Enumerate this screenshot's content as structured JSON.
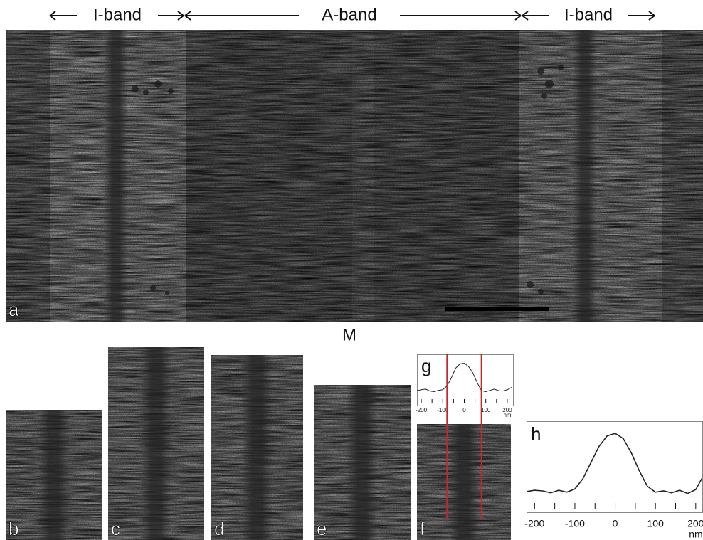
{
  "band_labels": [
    "I-band",
    "A-band",
    "I-band"
  ],
  "micrograph_label": "a",
  "m_line_label": "M",
  "strip_labels": [
    "b",
    "c",
    "d",
    "e",
    "f"
  ],
  "plots": [
    {
      "label": "g",
      "unit": "nm",
      "xlim": [
        -220,
        230
      ],
      "ylim": [
        0,
        110
      ],
      "xticks": [
        -200,
        -100,
        0,
        100,
        200
      ],
      "xminor": [
        -150,
        -50,
        50,
        150
      ],
      "x": [
        -220,
        -200,
        -180,
        -160,
        -140,
        -120,
        -100,
        -80,
        -60,
        -40,
        -20,
        0,
        20,
        40,
        60,
        80,
        100,
        120,
        140,
        160,
        180,
        200,
        220
      ],
      "values": [
        15,
        18,
        20,
        14,
        12,
        16,
        18,
        30,
        55,
        85,
        98,
        100,
        90,
        70,
        40,
        15,
        12,
        16,
        20,
        15,
        14,
        18,
        25
      ],
      "markers": [
        -80,
        80
      ],
      "color": "#222222",
      "marker_color": "#c0282d"
    },
    {
      "label": "h",
      "unit": "nm",
      "xlim": [
        -220,
        218
      ],
      "ylim": [
        0,
        110
      ],
      "xticks": [
        -200,
        -100,
        0,
        100,
        200
      ],
      "xminor": [
        -150,
        -50,
        50,
        150
      ],
      "x": [
        -220,
        -200,
        -180,
        -160,
        -140,
        -120,
        -100,
        -80,
        -60,
        -40,
        -20,
        0,
        20,
        40,
        60,
        80,
        100,
        120,
        140,
        160,
        180,
        200,
        215
      ],
      "values": [
        10,
        12,
        11,
        8,
        12,
        9,
        14,
        30,
        55,
        80,
        96,
        100,
        92,
        70,
        42,
        18,
        9,
        11,
        8,
        12,
        7,
        13,
        30
      ],
      "color": "#222222"
    }
  ]
}
